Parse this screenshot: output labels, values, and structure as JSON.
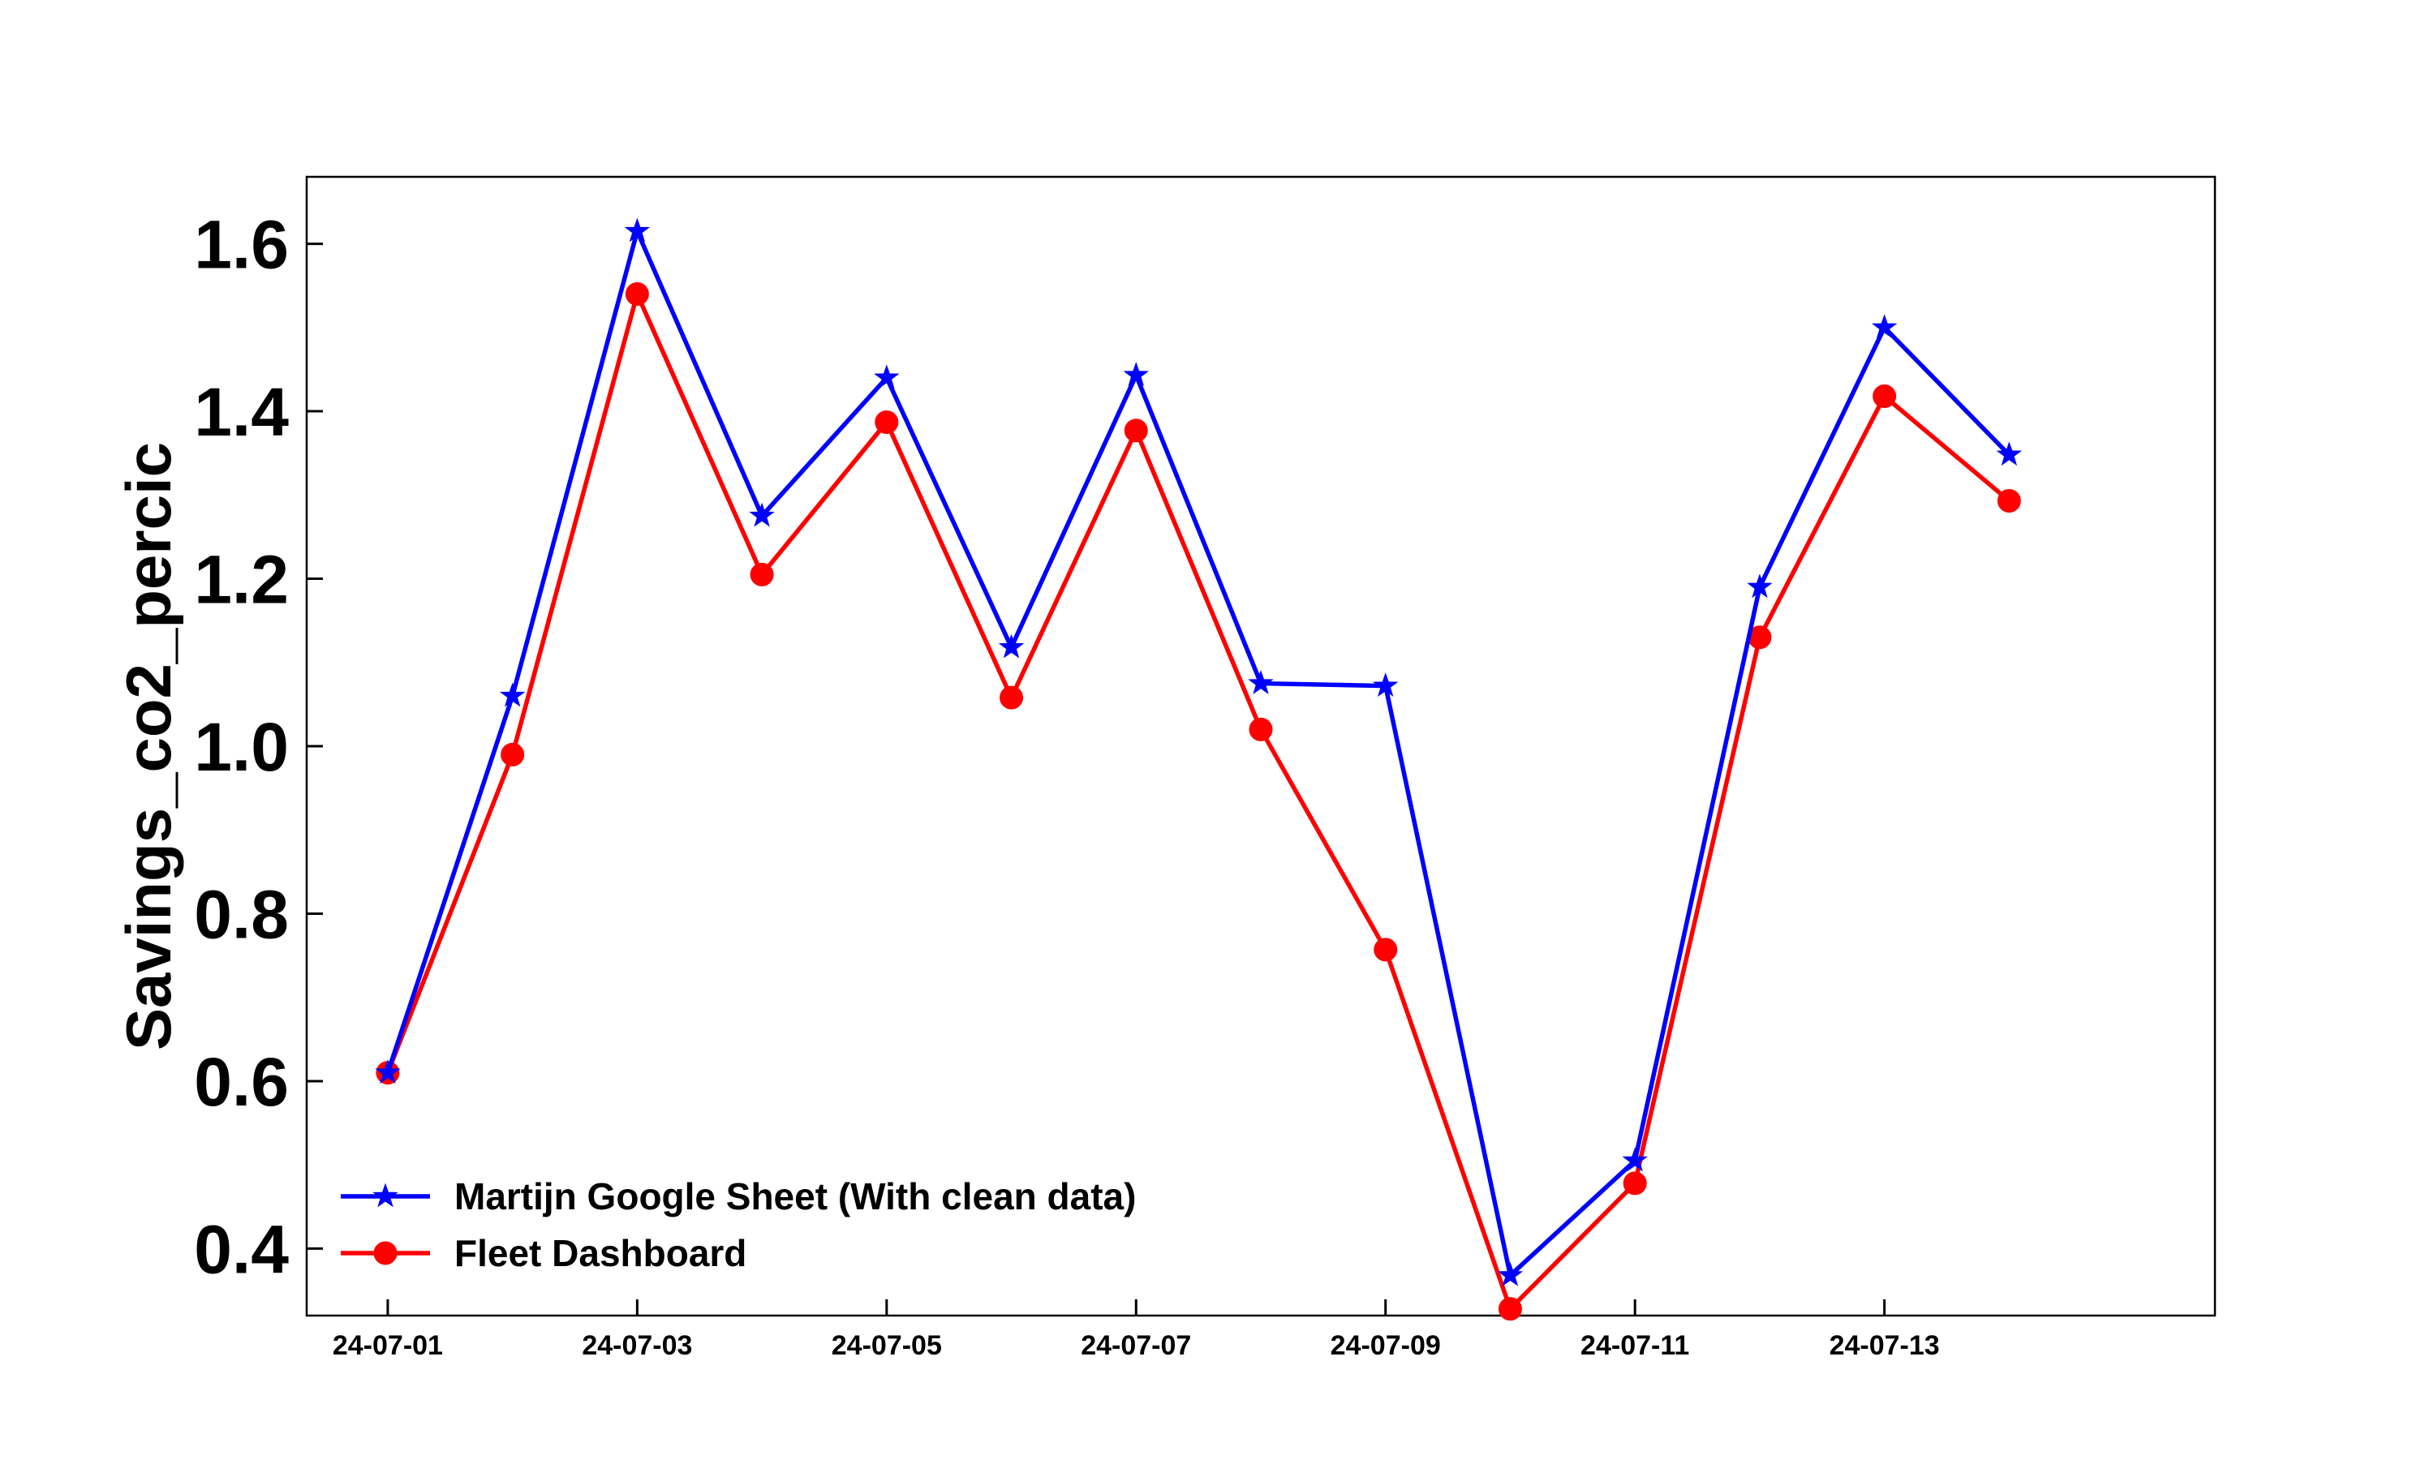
{
  "chart_data": {
    "type": "line",
    "title": "",
    "xlabel": "",
    "ylabel": "Savings_co2_percic",
    "x": [
      "24-07-01",
      "24-07-02",
      "24-07-03",
      "24-07-04",
      "24-07-05",
      "24-07-06",
      "24-07-07",
      "24-07-08",
      "24-07-09",
      "24-07-10",
      "24-07-11",
      "24-07-12",
      "24-07-13",
      "24-07-14"
    ],
    "xticks": [
      "24-07-01",
      "24-07-03",
      "24-07-05",
      "24-07-07",
      "24-07-09",
      "24-07-11",
      "24-07-13"
    ],
    "yticks": [
      "0.4",
      "0.6",
      "0.8",
      "1.0",
      "1.2",
      "1.4",
      "1.6"
    ],
    "ylim": [
      0.32,
      1.68
    ],
    "xlim": [
      "24-06-30",
      "24-07-15"
    ],
    "grid": false,
    "legend_position": "bottom-left",
    "series": [
      {
        "name": "Martijn Google Sheet (With clean data)",
        "color": "#0000ff",
        "marker": "star",
        "values": [
          0.61,
          1.06,
          1.615,
          1.275,
          1.44,
          1.118,
          1.443,
          1.075,
          1.072,
          0.368,
          0.505,
          1.19,
          1.5,
          1.348
        ]
      },
      {
        "name": "Fleet Dashboard",
        "color": "#ff0000",
        "marker": "circle",
        "values": [
          0.61,
          0.99,
          1.54,
          1.205,
          1.387,
          1.058,
          1.377,
          1.02,
          0.757,
          0.328,
          0.478,
          1.13,
          1.418,
          1.293
        ]
      }
    ]
  }
}
